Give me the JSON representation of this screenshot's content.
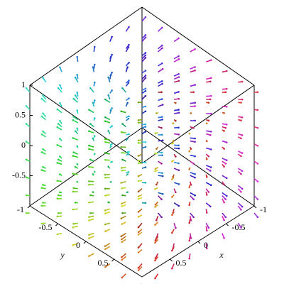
{
  "chart_data": {
    "type": "vectorfield3d",
    "xlabel": "x",
    "ylabel": "y",
    "xlim": [
      -1,
      1
    ],
    "ylim": [
      -1,
      1
    ],
    "zlim": [
      -1,
      1
    ],
    "xticks": [
      -1,
      -0.5,
      0,
      0.5
    ],
    "yticks": [
      -1,
      -0.5,
      0,
      0.5
    ],
    "zticks": [
      -0.5,
      0,
      0.5,
      1
    ]
  }
}
